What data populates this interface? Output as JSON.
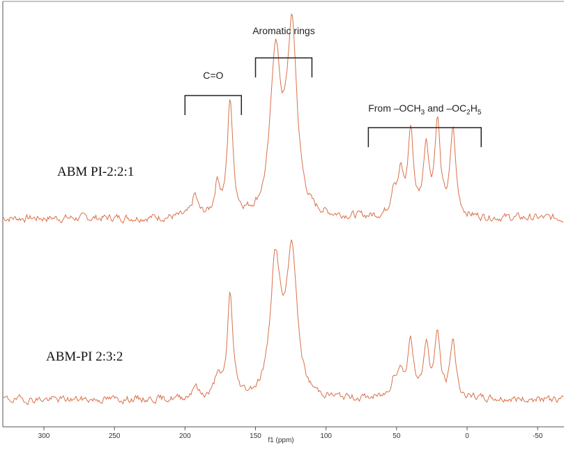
{
  "chart_data": {
    "type": "line",
    "xlabel": "f1 (ppm)",
    "xlim": [
      310,
      -55
    ],
    "x_reversed": true,
    "x_ticks": [
      "300",
      "250",
      "200",
      "150",
      "100",
      "50",
      "0",
      "-50"
    ],
    "x_tick_values": [
      300,
      250,
      200,
      150,
      100,
      50,
      0,
      -50
    ],
    "grid": false,
    "line_color": "#d9704a",
    "bracket_color": "#222222",
    "annotations": [
      {
        "text": "C=O",
        "from_ppm": 200,
        "to_ppm": 160
      },
      {
        "text": "Aromatic rings",
        "from_ppm": 150,
        "to_ppm": 110
      },
      {
        "text_parts": [
          "From –OCH",
          "3",
          " and –OC",
          "2",
          "H",
          "5"
        ],
        "from_ppm": 70,
        "to_ppm": -10
      }
    ],
    "series": [
      {
        "name": "ABM PI-2:2:1",
        "peaks": [
          {
            "ppm": 193,
            "height": 0.1
          },
          {
            "ppm": 177,
            "height": 0.15
          },
          {
            "ppm": 168,
            "height": 0.55
          },
          {
            "ppm": 136,
            "height": 0.7
          },
          {
            "ppm": 124,
            "height": 0.82
          },
          {
            "ppm": 52,
            "height": 0.13
          },
          {
            "ppm": 47,
            "height": 0.18
          },
          {
            "ppm": 40,
            "height": 0.4
          },
          {
            "ppm": 29,
            "height": 0.33
          },
          {
            "ppm": 21,
            "height": 0.44
          },
          {
            "ppm": 10,
            "height": 0.41
          }
        ]
      },
      {
        "name": "ABM-PI 2:3:2",
        "peaks": [
          {
            "ppm": 193,
            "height": 0.07
          },
          {
            "ppm": 177,
            "height": 0.11
          },
          {
            "ppm": 168,
            "height": 0.53
          },
          {
            "ppm": 136,
            "height": 0.63
          },
          {
            "ppm": 124,
            "height": 0.68
          },
          {
            "ppm": 52,
            "height": 0.1
          },
          {
            "ppm": 47,
            "height": 0.13
          },
          {
            "ppm": 40,
            "height": 0.3
          },
          {
            "ppm": 29,
            "height": 0.27
          },
          {
            "ppm": 21,
            "height": 0.32
          },
          {
            "ppm": 10,
            "height": 0.3
          }
        ]
      }
    ]
  }
}
